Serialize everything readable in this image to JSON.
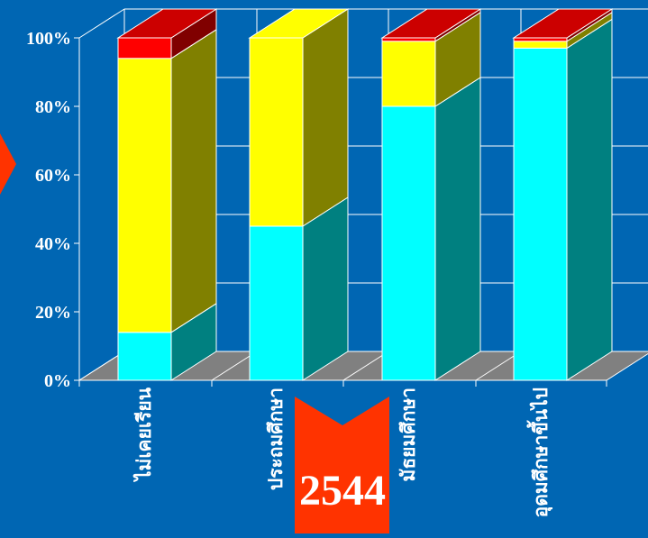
{
  "chart_data": {
    "type": "bar",
    "stacked": true,
    "three_d": true,
    "grid": true,
    "ylim": [
      0,
      100
    ],
    "y_ticks": [
      "0%",
      "20%",
      "40%",
      "60%",
      "80%",
      "100%"
    ],
    "categories": [
      "ไม่เคยเรียน",
      "ประถมศึกษา",
      "มัธยมศึกษา",
      "อุดมศึกษาขึ้นไป"
    ],
    "series": [
      {
        "values": [
          14,
          45,
          80,
          97
        ],
        "color": "#00ffff",
        "side_color": "#008080",
        "top_color": "#00ffff"
      },
      {
        "values": [
          80,
          55,
          19,
          2
        ],
        "color": "#ffff00",
        "side_color": "#808000",
        "top_color": "#ffff00"
      },
      {
        "values": [
          6,
          0,
          1,
          1
        ],
        "color": "#ff0000",
        "side_color": "#800000",
        "top_color": "#cc0000"
      }
    ],
    "colors": {
      "background": "#0066b3",
      "grid": "#ffffff",
      "floor": "#808080",
      "accent": "#ff3300"
    }
  },
  "badge": {
    "year": "2544"
  }
}
